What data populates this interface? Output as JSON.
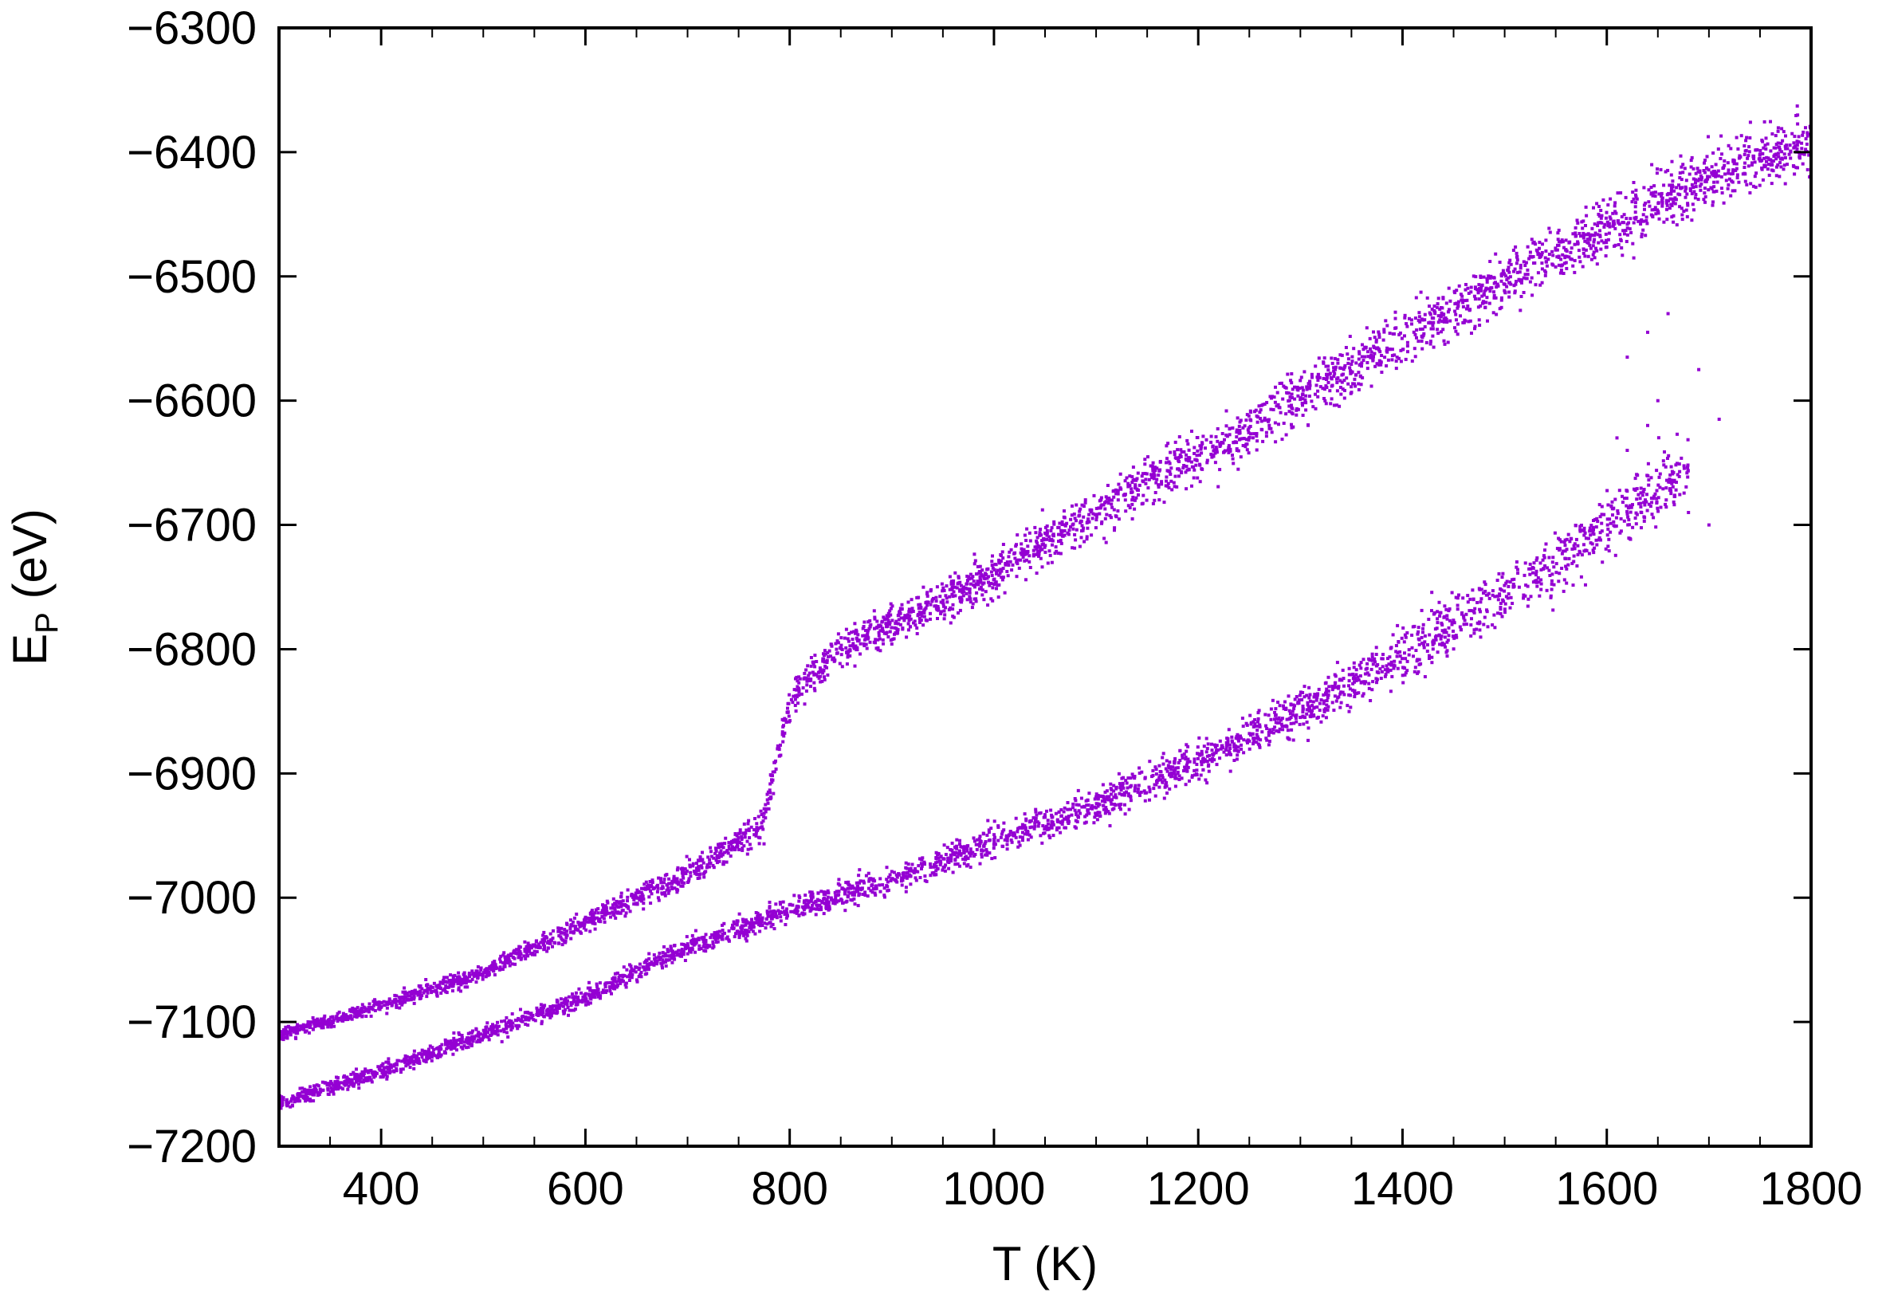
{
  "chart_data": {
    "type": "scatter",
    "title": "",
    "xlabel": "T (K)",
    "ylabel_main": "E",
    "ylabel_sub": "P",
    "ylabel_unit": " (eV)",
    "xlim": [
      300,
      1800
    ],
    "ylim": [
      -7200,
      -6300
    ],
    "x_ticks": [
      400,
      600,
      800,
      1000,
      1200,
      1400,
      1600,
      1800
    ],
    "x_tick_labels": [
      "400",
      "600",
      "800",
      "1000",
      "1200",
      "1400",
      "1600",
      "1800"
    ],
    "y_ticks": [
      -7200,
      -7100,
      -7000,
      -6900,
      -6800,
      -6700,
      -6600,
      -6500,
      -6400,
      -6300
    ],
    "y_tick_labels": [
      "−7200",
      "−7100",
      "−7000",
      "−6900",
      "−6800",
      "−6700",
      "−6600",
      "−6500",
      "−6400",
      "−6300"
    ],
    "grid": false,
    "marker_color": "#9400D3",
    "series": [
      {
        "branch": "upper",
        "points_per_trace": 600,
        "noise": [
          [
            300,
            4
          ],
          [
            700,
            8
          ],
          [
            820,
            12
          ],
          [
            1100,
            16
          ],
          [
            1800,
            22
          ]
        ],
        "trend": [
          [
            300,
            -7110
          ],
          [
            400,
            -7087
          ],
          [
            500,
            -7060
          ],
          [
            600,
            -7020
          ],
          [
            650,
            -7000
          ],
          [
            700,
            -6980
          ],
          [
            750,
            -6955
          ],
          [
            775,
            -6940
          ],
          [
            785,
            -6900
          ],
          [
            795,
            -6860
          ],
          [
            805,
            -6835
          ],
          [
            815,
            -6825
          ],
          [
            830,
            -6815
          ],
          [
            850,
            -6800
          ],
          [
            900,
            -6780
          ],
          [
            950,
            -6760
          ],
          [
            1000,
            -6740
          ],
          [
            1050,
            -6715
          ],
          [
            1100,
            -6690
          ],
          [
            1150,
            -6665
          ],
          [
            1200,
            -6645
          ],
          [
            1250,
            -6625
          ],
          [
            1300,
            -6595
          ],
          [
            1350,
            -6575
          ],
          [
            1400,
            -6550
          ],
          [
            1450,
            -6525
          ],
          [
            1500,
            -6505
          ],
          [
            1550,
            -6480
          ],
          [
            1600,
            -6460
          ],
          [
            1650,
            -6440
          ],
          [
            1700,
            -6420
          ],
          [
            1750,
            -6405
          ],
          [
            1800,
            -6390
          ]
        ]
      },
      {
        "branch": "lower",
        "points_per_trace": 520,
        "noise": [
          [
            300,
            5
          ],
          [
            700,
            7
          ],
          [
            1000,
            10
          ],
          [
            1300,
            15
          ],
          [
            1680,
            24
          ]
        ],
        "trend": [
          [
            300,
            -7165
          ],
          [
            400,
            -7140
          ],
          [
            500,
            -7110
          ],
          [
            600,
            -7080
          ],
          [
            700,
            -7040
          ],
          [
            800,
            -7010
          ],
          [
            900,
            -6985
          ],
          [
            1000,
            -6955
          ],
          [
            1100,
            -6925
          ],
          [
            1200,
            -6890
          ],
          [
            1300,
            -6850
          ],
          [
            1400,
            -6805
          ],
          [
            1500,
            -6755
          ],
          [
            1550,
            -6730
          ],
          [
            1600,
            -6700
          ],
          [
            1650,
            -6670
          ],
          [
            1680,
            -6655
          ]
        ]
      },
      {
        "branch": "outliers",
        "x": [
          1620,
          1640,
          1660,
          1650,
          1640,
          1690,
          1710,
          1620,
          1630,
          1680,
          1700,
          1610
        ],
        "y": [
          -6565,
          -6545,
          -6530,
          -6600,
          -6620,
          -6575,
          -6615,
          -6640,
          -6660,
          -6690,
          -6700,
          -6630
        ]
      }
    ]
  }
}
